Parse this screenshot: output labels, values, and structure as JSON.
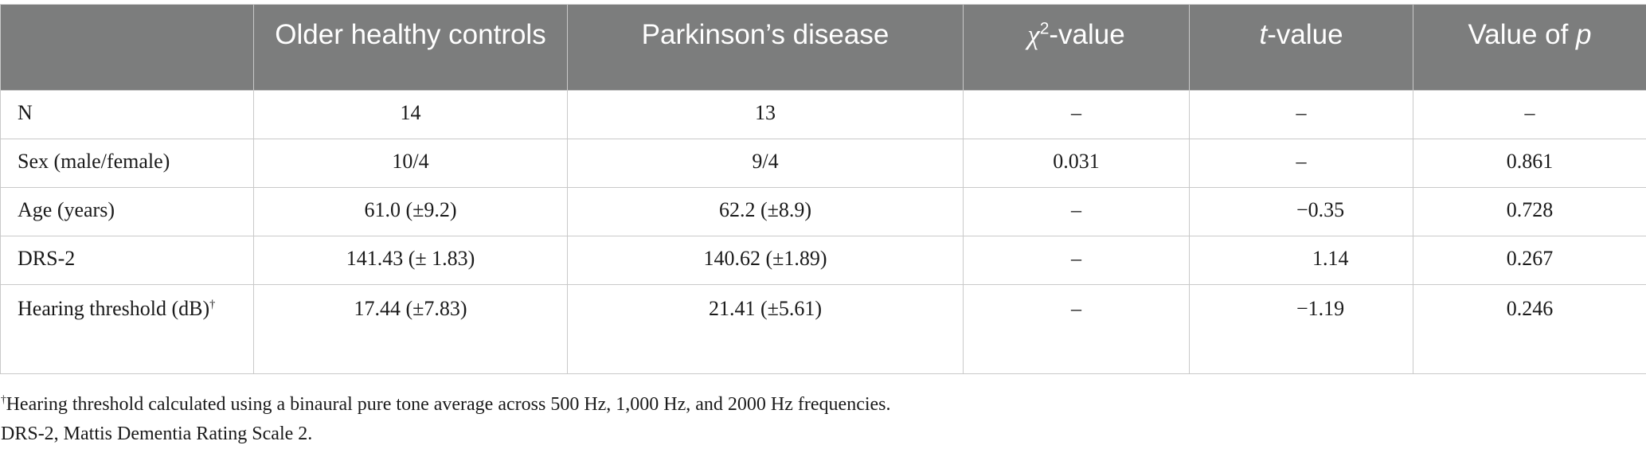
{
  "table": {
    "headers": {
      "blank": "",
      "col1": "Older healthy controls",
      "col2": "Parkinson’s disease",
      "col3_symbol": "χ",
      "col3_sup": "2",
      "col3_suffix": "-value",
      "col4_symbol": "t",
      "col4_suffix": "-value",
      "col5_prefix": "Value of ",
      "col5_symbol": "p"
    },
    "rows": [
      {
        "label": "N",
        "label_sup": "",
        "label_cont": "",
        "controls": "14",
        "pd": "13",
        "chi2": "–",
        "t": "–",
        "p": "–"
      },
      {
        "label": "Sex (male/female)",
        "label_sup": "",
        "label_cont": "",
        "controls": "10/4",
        "pd": "9/4",
        "chi2": "0.031",
        "t": "–",
        "p": "0.861"
      },
      {
        "label": "Age (years)",
        "label_sup": "",
        "label_cont": "",
        "controls": "61.0 (±9.2)",
        "pd": "62.2 (±8.9)",
        "chi2": "–",
        "t": "−0.35",
        "p": "0.728"
      },
      {
        "label": "DRS-2",
        "label_sup": "",
        "label_cont": "",
        "controls": "141.43 (± 1.83)",
        "pd": "140.62 (±1.89)",
        "chi2": "–",
        "t": "1.14",
        "p": "0.267"
      },
      {
        "label": "Hearing threshold (dB)",
        "label_sup": "†",
        "label_cont": "",
        "controls": "17.44 (±7.83)",
        "pd": "21.41 (±5.61)",
        "chi2": "–",
        "t": "−1.19",
        "p": "0.246"
      }
    ]
  },
  "footnotes": {
    "note1_mark": "†",
    "note1_text": "Hearing threshold calculated using a binaural pure tone average across 500 Hz, 1,000 Hz, and 2000 Hz frequencies.",
    "note2_text": "DRS-2, Mattis Dementia Rating Scale 2."
  }
}
